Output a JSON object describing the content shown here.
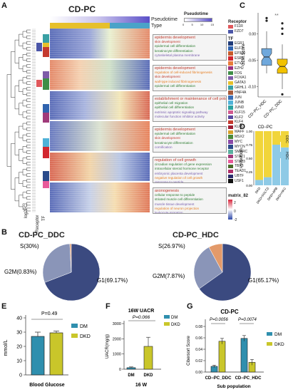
{
  "panels": {
    "A": {
      "letter": "A",
      "title": "CD-PC",
      "track_labels": [
        "Pseudotime",
        "Type"
      ],
      "scale_title": "Pseudotime",
      "scale_ticks": [
        "0",
        "5",
        "10",
        "15"
      ],
      "bottom_labels": [
        "log2FC",
        "Receptor",
        "TF"
      ],
      "receptor_title": "Receptor",
      "receptors": [
        {
          "name": "F11R",
          "color": "#e0585c"
        },
        {
          "name": "FZD7",
          "color": "#4b56a8"
        }
      ],
      "tf_title": "TF",
      "tfs": [
        {
          "name": "EGR1",
          "color": "#1f3b7a"
        },
        {
          "name": "ELF3",
          "color": "#2f63ae"
        },
        {
          "name": "EP300",
          "color": "#c85a2a"
        },
        {
          "name": "ESR1",
          "color": "#d2262f"
        },
        {
          "name": "ETV1",
          "color": "#e87c3a"
        },
        {
          "name": "EZH2",
          "color": "#9b2f7d"
        },
        {
          "name": "FOS",
          "color": "#3e8e46"
        },
        {
          "name": "FOXA1",
          "color": "#7e5ba8"
        },
        {
          "name": "GATA3",
          "color": "#e6c02b"
        },
        {
          "name": "GRHL1",
          "color": "#39a0a4"
        },
        {
          "name": "HNF4A",
          "color": "#a65a3a"
        },
        {
          "name": "JUN",
          "color": "#3a6fb6"
        },
        {
          "name": "JUNB",
          "color": "#4fb2d8"
        },
        {
          "name": "JUND",
          "color": "#2ba2a0"
        },
        {
          "name": "KLF15",
          "color": "#d15a8f"
        },
        {
          "name": "KLF2",
          "color": "#5a4aa0"
        },
        {
          "name": "KLF4",
          "color": "#c43a2f"
        },
        {
          "name": "KLF5",
          "color": "#9e1f34"
        },
        {
          "name": "MAFF",
          "color": "#d8a02a"
        },
        {
          "name": "MSX2",
          "color": "#4a8a3a"
        },
        {
          "name": "MYC",
          "color": "#8a4aa8"
        },
        {
          "name": "MYCN",
          "color": "#2a4a8a"
        },
        {
          "name": "SMARC",
          "color": "#5ab0a0"
        },
        {
          "name": "STAT1",
          "color": "#a03a7a"
        },
        {
          "name": "STAT3",
          "color": "#e85a9a"
        },
        {
          "name": "TBX3",
          "color": "#4a6a2a"
        },
        {
          "name": "TEAD1",
          "color": "#b0306a"
        },
        {
          "name": "UBTF",
          "color": "#2a2a6a"
        },
        {
          "name": "USF1",
          "color": "#111111"
        }
      ],
      "matrix_title": "matrix_82",
      "matrix_ticks": [
        "2",
        "0",
        "-2"
      ],
      "go_blocks": [
        {
          "terms": [
            {
              "text": "epidermis development",
              "color": "#c0392b"
            },
            {
              "text": "skin development",
              "color": "#c0392b"
            },
            {
              "text": "epidermal cell differentiation",
              "color": "#2e7d32"
            },
            {
              "text": "keratinocyte differentiation",
              "color": "#2e7d32"
            },
            {
              "text": "cytoskeletal plasma membrane",
              "color": "#7b61b0"
            }
          ]
        },
        {
          "terms": [
            {
              "text": "epidermis development",
              "color": "#c0392b"
            },
            {
              "text": "regulation of cell-induced fibrinogenesis",
              "color": "#e67e22"
            },
            {
              "text": "skin development",
              "color": "#c0392b"
            },
            {
              "text": "wall-type induced fibrinogenesis",
              "color": "#e67e22"
            },
            {
              "text": "epidermal cell differentiation",
              "color": "#2e7d32"
            }
          ]
        },
        {
          "terms": [
            {
              "text": "establishment or maintenance of cell polarity",
              "color": "#c0392b"
            },
            {
              "text": "epithelial cell migration",
              "color": "#2e7d32"
            },
            {
              "text": "epithelial cell differentiation",
              "color": "#2e7d32"
            },
            {
              "text": "extrinsic apoptotic signaling pathway",
              "color": "#7b61b0"
            },
            {
              "text": "molecular function inhibitor activity",
              "color": "#7b61b0"
            }
          ]
        },
        {
          "terms": [
            {
              "text": "epidermis development",
              "color": "#c0392b"
            },
            {
              "text": "epidermal cell differentiation",
              "color": "#2e7d32"
            },
            {
              "text": "skin development",
              "color": "#c0392b"
            },
            {
              "text": "keratinocyte differentiation",
              "color": "#2e7d32"
            },
            {
              "text": "cornification",
              "color": "#7b61b0"
            }
          ]
        },
        {
          "terms": [
            {
              "text": "regulation of cell growth",
              "color": "#c0392b"
            },
            {
              "text": "circadian regulation of gene expression",
              "color": "#2e7d32"
            },
            {
              "text": "intracellular steroid hormone receptor",
              "color": "#2e7d32"
            },
            {
              "text": "embryonic placenta development",
              "color": "#7b61b0"
            },
            {
              "text": "negative regulation of cell growth",
              "color": "#e67e22"
            },
            {
              "text": "response to peptide",
              "color": "#7b61b0"
            }
          ]
        },
        {
          "terms": [
            {
              "text": "axonogenesis",
              "color": "#c0392b"
            },
            {
              "text": "cellular response to peptide",
              "color": "#2e7d32"
            },
            {
              "text": "striated muscle cell differentiation",
              "color": "#2e7d32"
            },
            {
              "text": "muscle tissue development",
              "color": "#7b61b0"
            },
            {
              "text": "regulation of neuron projection",
              "color": "#e67e22"
            },
            {
              "text": "leukocyte migration",
              "color": "#7b61b0"
            }
          ]
        }
      ]
    },
    "B": {
      "letter": "B",
      "charts": [
        {
          "title": "CD-PC_DDC",
          "labels": [
            "S(30%)",
            "G2M(0.83%)",
            "G1(69.17%)"
          ]
        },
        {
          "title": "CD-PC_HDC",
          "labels": [
            "S(26.97%)",
            "G2M(7.87%)",
            "G1(65.17%)"
          ]
        }
      ]
    },
    "C": {
      "letter": "C",
      "sig": "**",
      "ylabel": "G2M.Score",
      "yticks": [
        "0.00",
        "-0.05",
        "-0.10"
      ],
      "categories": [
        "CD−PC_HDC",
        "CD−PC_DDC"
      ]
    },
    "D": {
      "letter": "D",
      "title": "CD−PC",
      "ylabel": "Proportion",
      "yticks": [
        "1.00",
        "0.75",
        "0.50",
        "0.25",
        "0.00"
      ],
      "categories": [
        "DKD",
        "DKD+SGLT2i",
        "DKD+ARB",
        "DKD+HKC"
      ],
      "legend": [
        "DDC",
        "HDC"
      ]
    },
    "E": {
      "letter": "E",
      "pvalue": "P=0.49",
      "ylabel": "mmol/L",
      "yticks": [
        "40",
        "30",
        "20",
        "10",
        "0"
      ],
      "xlabel": "Blood Glucose",
      "categories": [
        "DM",
        "DKD"
      ],
      "legend": [
        "DM",
        "DKD"
      ]
    },
    "F": {
      "letter": "F",
      "title": "16W UACR",
      "pvalue": "P=0.066",
      "ylabel": "UACR(mg/g)",
      "yticks": [
        "3000",
        "2000",
        "1000",
        "0"
      ],
      "categories": [
        "DM",
        "DKD"
      ],
      "xlabel": "16 W",
      "legend": [
        "DM",
        "DKD"
      ]
    },
    "G": {
      "letter": "G",
      "title": "CD-PC",
      "pvalues": [
        "P=0.0056",
        "P=0.0074"
      ],
      "ylabel": "Cibersort Score",
      "yticks": [
        "0.08",
        "0.06",
        "0.04",
        "0.02",
        "0.00"
      ],
      "categories": [
        "CD−PC_DDC",
        "CD−PC_HDC"
      ],
      "xlabel": "Sub population",
      "legend": [
        "DM",
        "DKD"
      ]
    }
  },
  "colors": {
    "dm": "#2f8fae",
    "dkd": "#c9c62a",
    "pie_g1": "#3b4a80",
    "pie_s": "#8a95b8",
    "pie_g2m": "#e39a6a",
    "hdc_box": "#6fa8dc",
    "ddc_box": "#f2c200",
    "d_ddc": "#f1d53a",
    "d_hdc": "#8ecae6"
  },
  "chart_data": [
    {
      "type": "pie",
      "title": "CD-PC_DDC",
      "categories": [
        "G1",
        "S",
        "G2M"
      ],
      "values": [
        69.17,
        30.0,
        0.83
      ]
    },
    {
      "type": "pie",
      "title": "CD-PC_HDC",
      "categories": [
        "G1",
        "S",
        "G2M"
      ],
      "values": [
        65.17,
        26.97,
        7.87
      ]
    },
    {
      "type": "box",
      "ylabel": "G2M.Score",
      "categories": [
        "CD−PC_HDC",
        "CD−PC_DDC"
      ],
      "series": [
        {
          "name": "CD−PC_HDC",
          "min": -0.075,
          "q1": -0.06,
          "median": -0.044,
          "q3": -0.028,
          "max": 0.005,
          "outliers": [
            0.03,
            0.025
          ]
        },
        {
          "name": "CD−PC_DDC",
          "min": -0.105,
          "q1": -0.075,
          "median": -0.062,
          "q3": -0.048,
          "max": -0.02,
          "outliers": [
            0.02,
            0.01,
            0.0,
            -0.115
          ]
        }
      ],
      "ylim": [
        -0.12,
        0.04
      ]
    },
    {
      "type": "bar",
      "stacked": true,
      "ylabel": "Proportion",
      "categories": [
        "DKD",
        "DKD+SGLT2i",
        "DKD+ARB",
        "DKD+HKC"
      ],
      "series": [
        {
          "name": "HDC",
          "values": [
            0.1,
            0.15,
            0.75,
            0.7
          ]
        },
        {
          "name": "DDC",
          "values": [
            0.9,
            0.85,
            0.25,
            0.3
          ]
        }
      ],
      "ylim": [
        0,
        1
      ]
    },
    {
      "type": "bar",
      "xlabel": "Blood Glucose",
      "ylabel": "mmol/L",
      "categories": [
        "DM",
        "DKD"
      ],
      "values": [
        27,
        29.5
      ],
      "errors": [
        3,
        1.2
      ],
      "ylim": [
        0,
        40
      ]
    },
    {
      "type": "bar",
      "title": "16W UACR",
      "xlabel": "16 W",
      "ylabel": "UACR(mg/g)",
      "categories": [
        "DM",
        "DKD"
      ],
      "values": [
        100,
        1500
      ],
      "errors": [
        50,
        600
      ],
      "ylim": [
        0,
        3000
      ]
    },
    {
      "type": "bar",
      "title": "CD-PC",
      "xlabel": "Sub population",
      "ylabel": "Cibersort Score",
      "categories": [
        "CD−PC_DDC",
        "CD−PC_HDC"
      ],
      "series": [
        {
          "name": "DM",
          "values": [
            0.01,
            0.059
          ],
          "errors": [
            0.002,
            0.005
          ]
        },
        {
          "name": "DKD",
          "values": [
            0.054,
            0.017
          ],
          "errors": [
            0.005,
            0.005
          ]
        }
      ],
      "ylim": [
        0,
        0.08
      ]
    }
  ]
}
